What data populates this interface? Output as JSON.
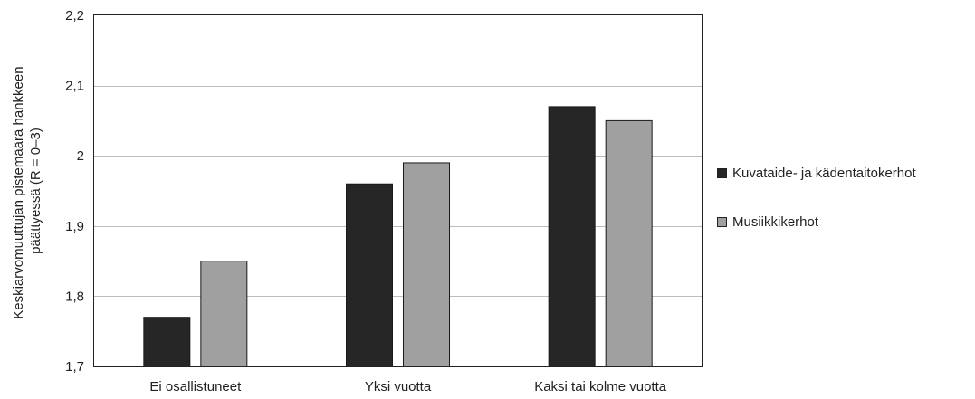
{
  "chart_data": {
    "type": "bar",
    "categories": [
      "Ei osallistuneet",
      "Yksi vuotta",
      "Kaksi tai kolme vuotta"
    ],
    "series": [
      {
        "name": "Kuvataide- ja kädentaitokerhot",
        "values": [
          1.77,
          1.96,
          2.07
        ],
        "color": "#262626"
      },
      {
        "name": "Musiikkikerhot",
        "values": [
          1.85,
          1.99,
          2.05
        ],
        "color": "#a0a0a0"
      }
    ],
    "ylabel_lines": [
      "Keskiarvomuuttujan pistemäärä hankkeen",
      "päättyessä (R = 0–3)"
    ],
    "xlabel": "",
    "title": "",
    "ylim": [
      1.7,
      2.2
    ],
    "yticks": [
      1.7,
      1.8,
      1.9,
      2.0,
      2.1,
      2.2
    ],
    "ytick_labels": [
      "1,7",
      "1,8",
      "1,9",
      "2",
      "2,1",
      "2,2"
    ],
    "grid": true,
    "legend_position": "right"
  }
}
